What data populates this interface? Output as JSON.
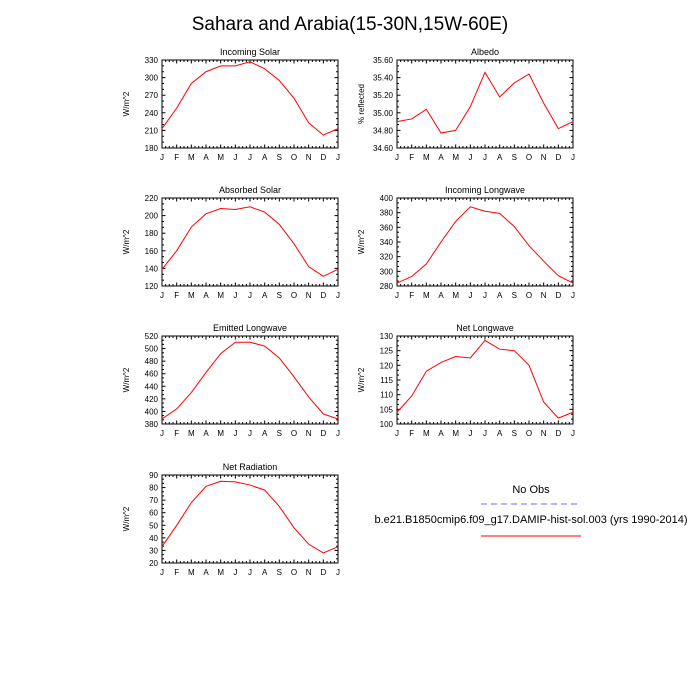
{
  "title": "Sahara and Arabia(15-30N,15W-60E)",
  "colors": {
    "model": "#ff0000",
    "obs": "#6a6aff"
  },
  "legend": {
    "obs_label": "No Obs",
    "model_label": "b.e21.B1850cmip6.f09_g17.DAMIP-hist-sol.003 (yrs 1990-2014)"
  },
  "chart_data": [
    {
      "type": "line",
      "title": "Incoming Solar",
      "ylabel": "W/m^2",
      "ylim": [
        180,
        330
      ],
      "yticks": [
        180,
        210,
        240,
        270,
        300,
        330
      ],
      "ytick_labels": [
        "180",
        "210",
        "240",
        "270",
        "300",
        "330"
      ],
      "categories": [
        "J",
        "F",
        "M",
        "A",
        "M",
        "J",
        "J",
        "A",
        "S",
        "O",
        "N",
        "D",
        "J"
      ],
      "series": [
        {
          "values": [
            213,
            248,
            290,
            310,
            320,
            320,
            327,
            315,
            295,
            265,
            223,
            202,
            213
          ]
        }
      ]
    },
    {
      "type": "line",
      "title": "Albedo",
      "ylabel": "% reflected",
      "ylim": [
        34.6,
        35.6
      ],
      "yticks": [
        34.6,
        34.8,
        35.0,
        35.2,
        35.4,
        35.6
      ],
      "ytick_labels": [
        "34.60",
        "34.80",
        "35.00",
        "35.20",
        "35.40",
        "35.60"
      ],
      "categories": [
        "J",
        "F",
        "M",
        "A",
        "M",
        "J",
        "J",
        "A",
        "S",
        "O",
        "N",
        "D",
        "J"
      ],
      "series": [
        {
          "values": [
            34.9,
            34.93,
            35.04,
            34.77,
            34.8,
            35.07,
            35.46,
            35.18,
            35.34,
            35.44,
            35.11,
            34.82,
            34.9
          ]
        }
      ]
    },
    {
      "type": "line",
      "title": "Absorbed Solar",
      "ylabel": "W/m^2",
      "ylim": [
        120,
        220
      ],
      "yticks": [
        120,
        140,
        160,
        180,
        200,
        220
      ],
      "ytick_labels": [
        "120",
        "140",
        "160",
        "180",
        "200",
        "220"
      ],
      "categories": [
        "J",
        "F",
        "M",
        "A",
        "M",
        "J",
        "J",
        "A",
        "S",
        "O",
        "N",
        "D",
        "J"
      ],
      "series": [
        {
          "values": [
            139,
            160,
            187,
            202,
            208,
            207,
            210,
            204,
            190,
            168,
            142,
            131,
            139
          ]
        }
      ]
    },
    {
      "type": "line",
      "title": "Incoming Longwave",
      "ylabel": "W/m^2",
      "ylim": [
        280,
        400
      ],
      "yticks": [
        280,
        300,
        320,
        340,
        360,
        380,
        400
      ],
      "ytick_labels": [
        "280",
        "300",
        "320",
        "340",
        "360",
        "380",
        "400"
      ],
      "categories": [
        "J",
        "F",
        "M",
        "A",
        "M",
        "J",
        "J",
        "A",
        "S",
        "O",
        "N",
        "D",
        "J"
      ],
      "series": [
        {
          "values": [
            284,
            293,
            310,
            340,
            368,
            388,
            382,
            379,
            361,
            335,
            314,
            294,
            284
          ]
        }
      ]
    },
    {
      "type": "line",
      "title": "Emitted Longwave",
      "ylabel": "W/m^2",
      "ylim": [
        380,
        520
      ],
      "yticks": [
        380,
        400,
        420,
        440,
        460,
        480,
        500,
        520
      ],
      "ytick_labels": [
        "380",
        "400",
        "420",
        "440",
        "460",
        "480",
        "500",
        "520"
      ],
      "categories": [
        "J",
        "F",
        "M",
        "A",
        "M",
        "J",
        "J",
        "A",
        "S",
        "O",
        "N",
        "D",
        "J"
      ],
      "series": [
        {
          "values": [
            388,
            404,
            430,
            462,
            492,
            510,
            510,
            504,
            485,
            455,
            423,
            396,
            388
          ]
        }
      ]
    },
    {
      "type": "line",
      "title": "Net Longwave",
      "ylabel": "W/m^2",
      "ylim": [
        100,
        130
      ],
      "yticks": [
        100,
        105,
        110,
        115,
        120,
        125,
        130
      ],
      "ytick_labels": [
        "100",
        "105",
        "110",
        "115",
        "120",
        "125",
        "130"
      ],
      "categories": [
        "J",
        "F",
        "M",
        "A",
        "M",
        "J",
        "J",
        "A",
        "S",
        "O",
        "N",
        "D",
        "J"
      ],
      "series": [
        {
          "values": [
            104,
            109.5,
            118,
            121,
            123,
            122.5,
            128.5,
            125.5,
            125,
            120,
            107.5,
            102,
            104
          ]
        }
      ]
    },
    {
      "type": "line",
      "title": "Net Radiation",
      "ylabel": "W/m^2",
      "ylim": [
        20,
        90
      ],
      "yticks": [
        20,
        30,
        40,
        50,
        60,
        70,
        80,
        90
      ],
      "ytick_labels": [
        "20",
        "30",
        "40",
        "50",
        "60",
        "70",
        "80",
        "90"
      ],
      "categories": [
        "J",
        "F",
        "M",
        "A",
        "M",
        "J",
        "J",
        "A",
        "S",
        "O",
        "N",
        "D",
        "J"
      ],
      "series": [
        {
          "values": [
            33,
            50,
            68,
            81,
            85,
            84.5,
            82,
            78,
            65,
            48,
            35,
            28,
            33
          ]
        }
      ]
    }
  ]
}
